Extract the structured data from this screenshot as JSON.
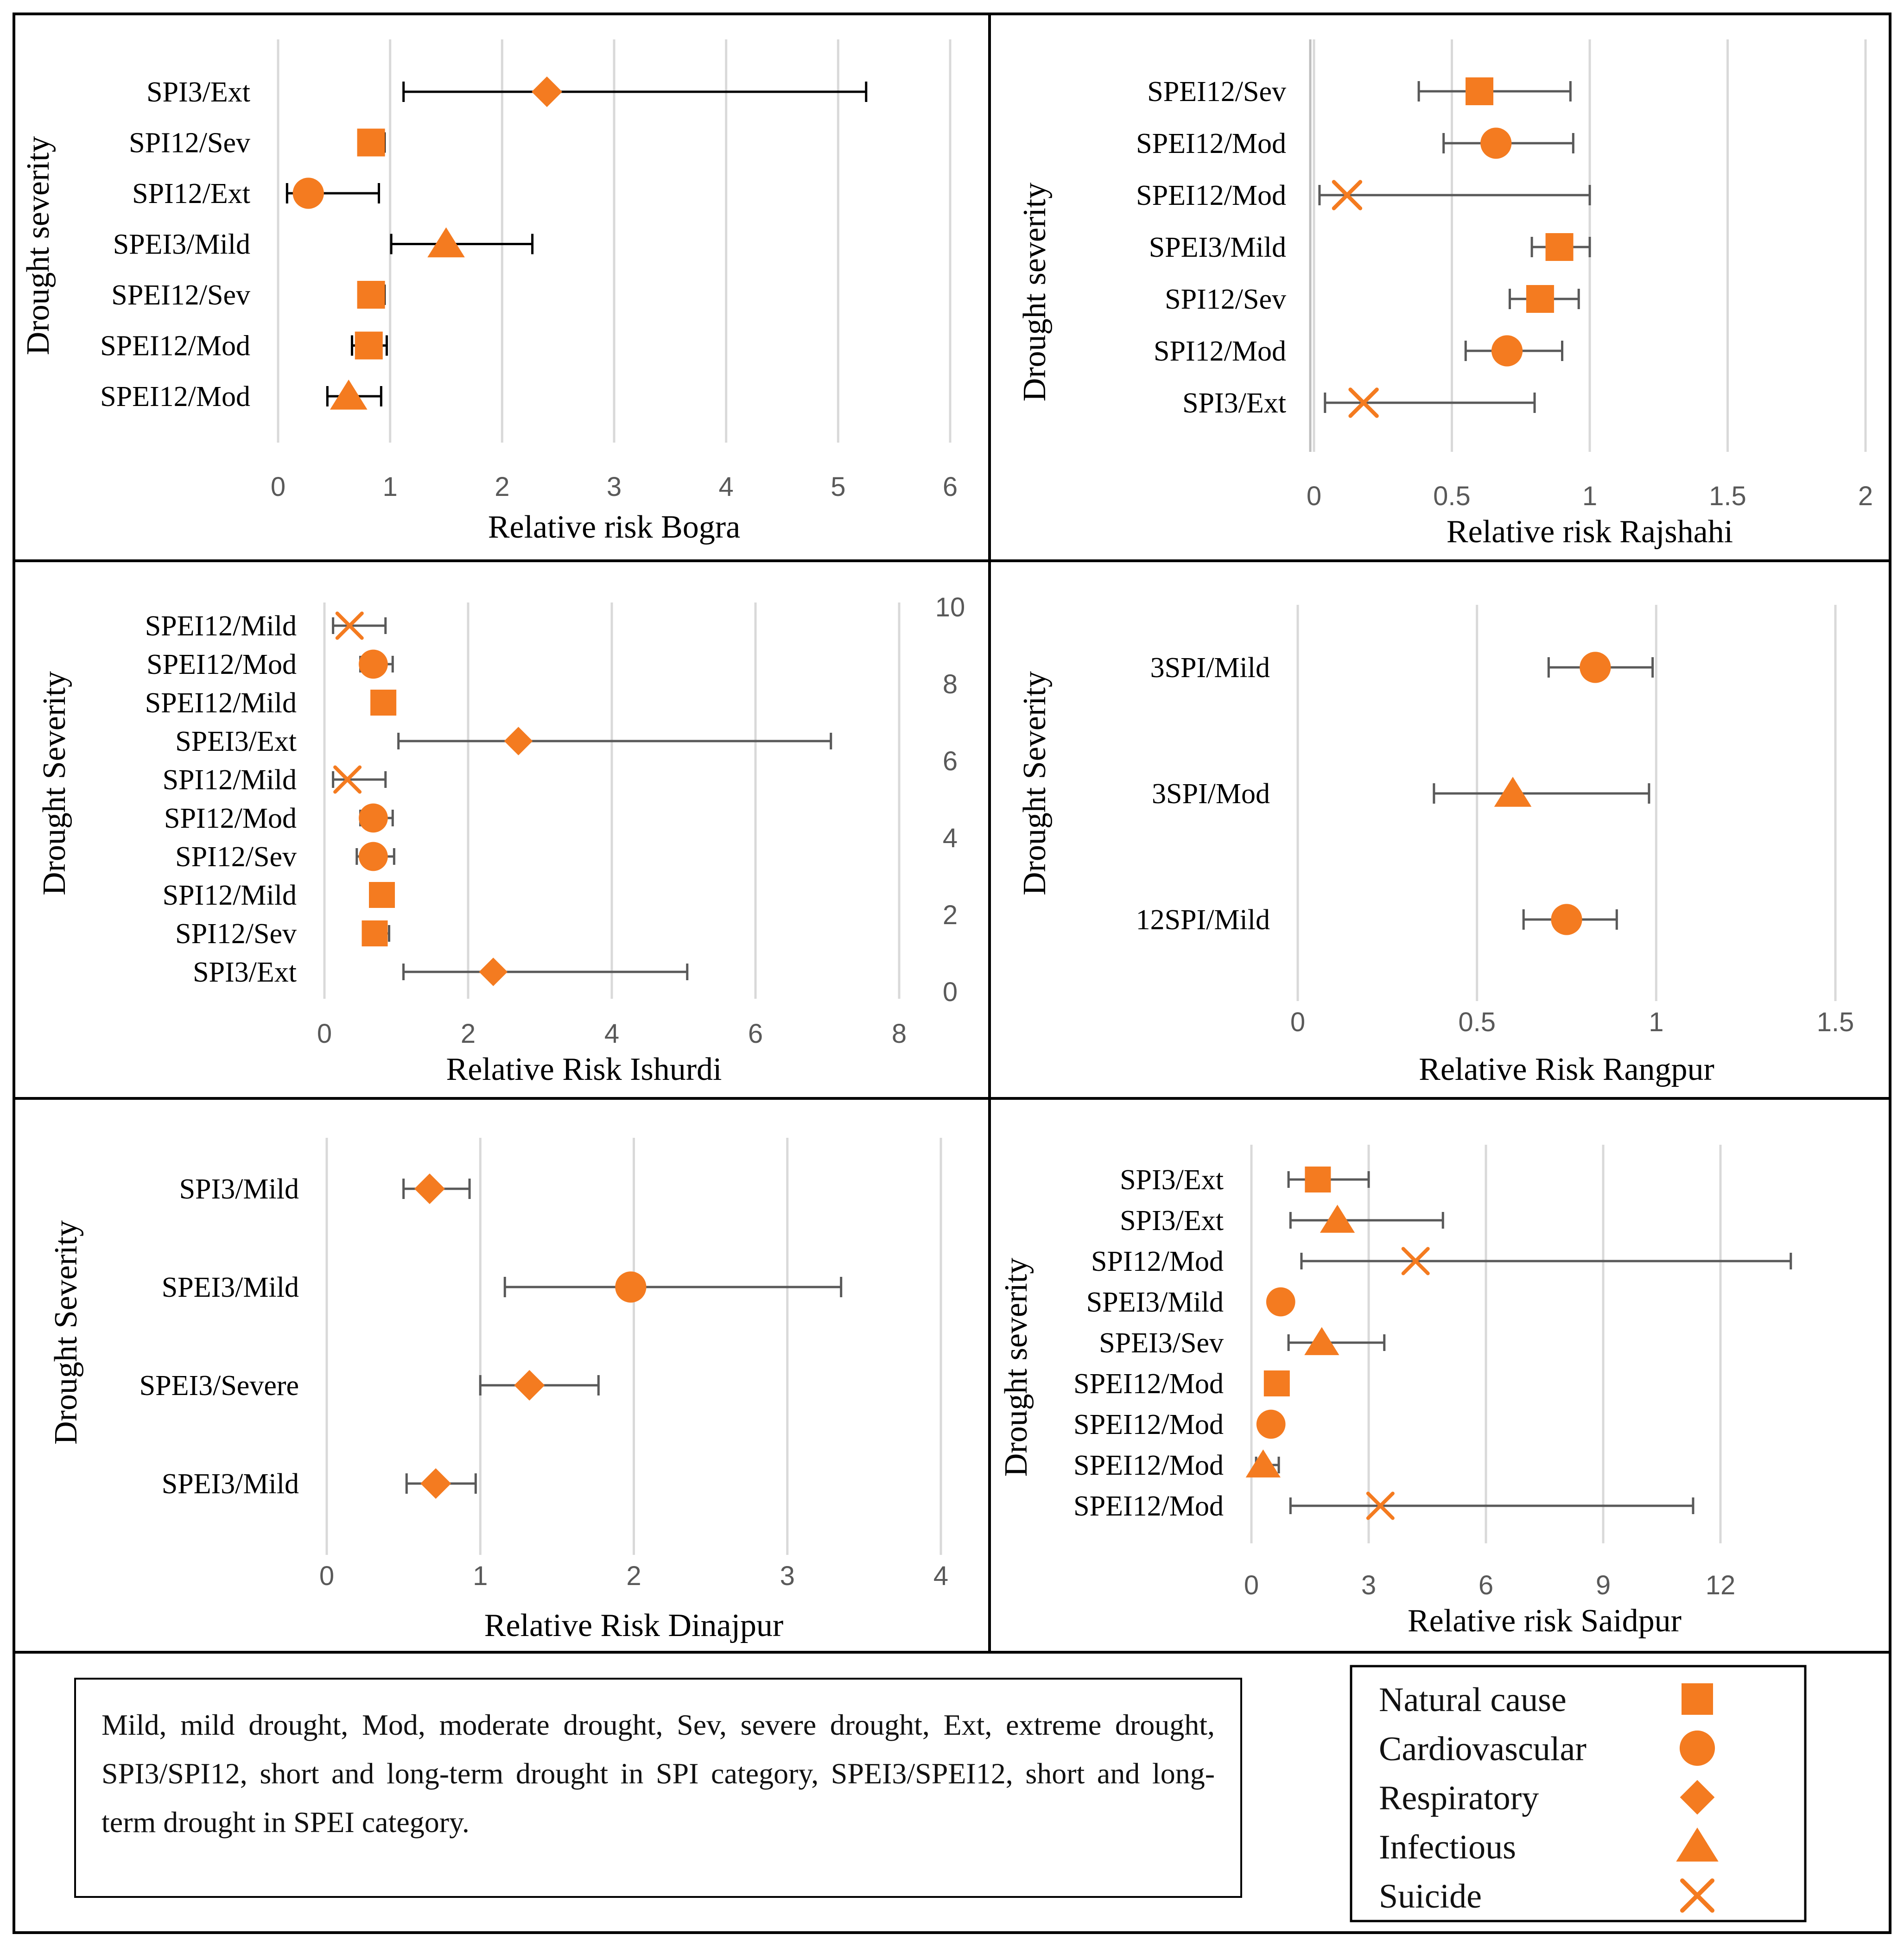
{
  "colors": {
    "marker": "#F47B20",
    "bar_dark": "#000000",
    "bar_grey": "#595959"
  },
  "chart_data": [
    {
      "type": "scatter",
      "title": "",
      "xlabel": "Relative risk Bogra",
      "ylabel": "Drought severity",
      "xlim": [
        0,
        6
      ],
      "xticks": [
        0,
        1,
        2,
        3,
        4,
        5,
        6
      ],
      "points": [
        {
          "label": "SPI3/Ext",
          "value": 2.4,
          "low": 1.12,
          "high": 5.25,
          "cause": "Respiratory"
        },
        {
          "label": "SPI12/Sev",
          "value": 0.83,
          "low": 0.76,
          "high": 0.95,
          "cause": "Natural cause"
        },
        {
          "label": "SPI12/Ext",
          "value": 0.27,
          "low": 0.08,
          "high": 0.9,
          "cause": "Cardiovascular"
        },
        {
          "label": "SPEI3/Mild",
          "value": 1.5,
          "low": 1.01,
          "high": 2.27,
          "cause": "Infectious"
        },
        {
          "label": "SPEI12/Sev",
          "value": 0.83,
          "low": 0.74,
          "high": 0.95,
          "cause": "Natural cause"
        },
        {
          "label": "SPEI12/Mod",
          "value": 0.81,
          "low": 0.66,
          "high": 0.97,
          "cause": "Natural cause"
        },
        {
          "label": "SPEI12/Mod",
          "value": 0.63,
          "low": 0.44,
          "high": 0.92,
          "cause": "Infectious"
        }
      ]
    },
    {
      "type": "scatter",
      "title": "",
      "xlabel": "Relative risk Rajshahi",
      "ylabel": "Drought severity",
      "xlim": [
        0,
        2
      ],
      "xticks": [
        0,
        0.5,
        1,
        1.5,
        2
      ],
      "points": [
        {
          "label": "SPEI12/Sev",
          "value": 0.6,
          "low": 0.38,
          "high": 0.93,
          "cause": "Natural cause"
        },
        {
          "label": "SPEI12/Mod",
          "value": 0.66,
          "low": 0.47,
          "high": 0.94,
          "cause": "Cardiovascular"
        },
        {
          "label": "SPEI12/Mod",
          "value": 0.12,
          "low": 0.02,
          "high": 1.0,
          "cause": "Suicide"
        },
        {
          "label": "SPEI3/Mild",
          "value": 0.89,
          "low": 0.79,
          "high": 1.0,
          "cause": "Natural cause"
        },
        {
          "label": "SPI12/Sev",
          "value": 0.82,
          "low": 0.71,
          "high": 0.96,
          "cause": "Natural cause"
        },
        {
          "label": "SPI12/Mod",
          "value": 0.7,
          "low": 0.55,
          "high": 0.9,
          "cause": "Cardiovascular"
        },
        {
          "label": "SPI3/Ext",
          "value": 0.18,
          "low": 0.04,
          "high": 0.8,
          "cause": "Suicide"
        }
      ]
    },
    {
      "type": "scatter",
      "title": "",
      "xlabel": "Relative Risk Ishurdi",
      "ylabel": "Drought Severity",
      "xlim": [
        0,
        8
      ],
      "xticks": [
        0,
        2,
        4,
        6,
        8
      ],
      "y2ticks": [
        0,
        2,
        4,
        6,
        8,
        10
      ],
      "points": [
        {
          "label": "SPEI12/Mild",
          "value": 0.35,
          "low": 0.12,
          "high": 0.85,
          "cause": "Suicide"
        },
        {
          "label": "SPEI12/Mod",
          "value": 0.68,
          "low": 0.5,
          "high": 0.95,
          "cause": "Cardiovascular"
        },
        {
          "label": "SPEI12/Mild",
          "value": 0.82,
          "low": 0.72,
          "high": 0.92,
          "cause": "Natural cause"
        },
        {
          "label": "SPEI3/Ext",
          "value": 2.7,
          "low": 1.03,
          "high": 7.05,
          "cause": "Respiratory"
        },
        {
          "label": "SPI12/Mild",
          "value": 0.32,
          "low": 0.12,
          "high": 0.85,
          "cause": "Suicide"
        },
        {
          "label": "SPI12/Mod",
          "value": 0.68,
          "low": 0.5,
          "high": 0.95,
          "cause": "Cardiovascular"
        },
        {
          "label": "SPI12/Sev",
          "value": 0.68,
          "low": 0.45,
          "high": 0.97,
          "cause": "Cardiovascular"
        },
        {
          "label": "SPI12/Mild",
          "value": 0.8,
          "low": 0.7,
          "high": 0.92,
          "cause": "Natural cause"
        },
        {
          "label": "SPI12/Sev",
          "value": 0.7,
          "low": 0.55,
          "high": 0.9,
          "cause": "Natural cause"
        },
        {
          "label": "SPI3/Ext",
          "value": 2.35,
          "low": 1.1,
          "high": 5.05,
          "cause": "Respiratory"
        }
      ]
    },
    {
      "type": "scatter",
      "title": "",
      "xlabel": "Relative Risk Rangpur",
      "ylabel": "Drought Severity",
      "xlim": [
        0,
        1.5
      ],
      "xticks": [
        0,
        0.5,
        1,
        1.5
      ],
      "points": [
        {
          "label": "3SPI/Mild",
          "value": 0.83,
          "low": 0.7,
          "high": 0.99,
          "cause": "Cardiovascular"
        },
        {
          "label": "3SPI/Mod",
          "value": 0.6,
          "low": 0.38,
          "high": 0.98,
          "cause": "Infectious"
        },
        {
          "label": "12SPI/Mild",
          "value": 0.75,
          "low": 0.63,
          "high": 0.89,
          "cause": "Cardiovascular"
        }
      ]
    },
    {
      "type": "scatter",
      "title": "",
      "xlabel": "Relative Risk Dinajpur",
      "ylabel": "Drought Severity",
      "xlim": [
        0,
        4
      ],
      "xticks": [
        0,
        1,
        2,
        3,
        4
      ],
      "points": [
        {
          "label": "SPI3/Mild",
          "value": 0.67,
          "low": 0.5,
          "high": 0.93,
          "cause": "Respiratory"
        },
        {
          "label": "SPEI3/Mild",
          "value": 1.98,
          "low": 1.16,
          "high": 3.35,
          "cause": "Cardiovascular"
        },
        {
          "label": "SPEI3/Severe",
          "value": 1.32,
          "low": 1.0,
          "high": 1.77,
          "cause": "Respiratory"
        },
        {
          "label": "SPEI3/Mild",
          "value": 0.71,
          "low": 0.52,
          "high": 0.97,
          "cause": "Respiratory"
        }
      ]
    },
    {
      "type": "scatter",
      "title": "",
      "xlabel": "Relative risk Saidpur",
      "ylabel": "Drought severity",
      "xlim": [
        0,
        15
      ],
      "xticks": [
        0,
        3,
        6,
        9,
        12
      ],
      "points": [
        {
          "label": "SPI3/Ext",
          "value": 1.7,
          "low": 0.95,
          "high": 3.0,
          "cause": "Natural cause"
        },
        {
          "label": "SPI3/Ext",
          "value": 2.2,
          "low": 1.0,
          "high": 4.9,
          "cause": "Infectious"
        },
        {
          "label": "SPI12/Mod",
          "value": 4.2,
          "low": 1.28,
          "high": 13.8,
          "cause": "Suicide"
        },
        {
          "label": "SPEI3/Mild",
          "value": 0.75,
          "low": 0.6,
          "high": 0.92,
          "cause": "Cardiovascular"
        },
        {
          "label": "SPEI3/Sev",
          "value": 1.8,
          "low": 0.95,
          "high": 3.4,
          "cause": "Infectious"
        },
        {
          "label": "SPEI12/Mod",
          "value": 0.65,
          "low": 0.55,
          "high": 0.78,
          "cause": "Natural cause"
        },
        {
          "label": "SPEI12/Mod",
          "value": 0.5,
          "low": 0.35,
          "high": 0.7,
          "cause": "Cardiovascular"
        },
        {
          "label": "SPEI12/Mod",
          "value": 0.3,
          "low": 0.12,
          "high": 0.7,
          "cause": "Infectious"
        },
        {
          "label": "SPEI12/Mod",
          "value": 3.3,
          "low": 1.0,
          "high": 11.3,
          "cause": "Suicide"
        }
      ]
    }
  ],
  "note": "Mild, mild drought, Mod, moderate drought, Sev, severe drought, Ext, extreme drought, SPI3/SPI12, short and long-term drought in SPI category, SPEI3/SPEI12, short and long-term drought in SPEI category.",
  "legend": [
    {
      "label": "Natural cause",
      "shape": "square"
    },
    {
      "label": "Cardiovascular",
      "shape": "circle"
    },
    {
      "label": "Respiratory",
      "shape": "diamond"
    },
    {
      "label": "Infectious",
      "shape": "triangle"
    },
    {
      "label": "Suicide",
      "shape": "x"
    }
  ]
}
